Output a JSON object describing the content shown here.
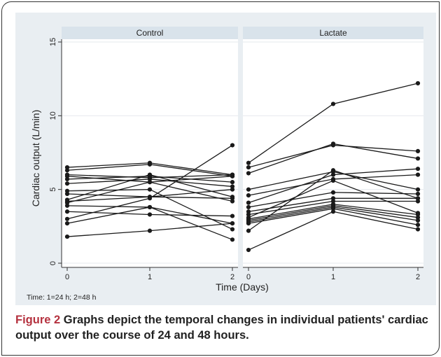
{
  "chart_data": {
    "type": "line",
    "panels": [
      {
        "title": "Control",
        "x": [
          0,
          1,
          2
        ],
        "series": [
          {
            "values": [
              6.5,
              6.8,
              6.0
            ]
          },
          {
            "values": [
              6.3,
              6.7,
              5.9
            ]
          },
          {
            "values": [
              6.0,
              5.8,
              6.0
            ]
          },
          {
            "values": [
              5.9,
              5.5,
              5.9
            ]
          },
          {
            "values": [
              5.7,
              5.9,
              5.5
            ]
          },
          {
            "values": [
              5.4,
              5.7,
              5.2
            ]
          },
          {
            "values": [
              4.9,
              5.0,
              2.3
            ]
          },
          {
            "values": [
              4.7,
              4.5,
              5.0
            ]
          },
          {
            "values": [
              4.3,
              6.0,
              4.5
            ]
          },
          {
            "values": [
              4.2,
              4.5,
              4.4
            ]
          },
          {
            "values": [
              4.1,
              5.5,
              4.2
            ]
          },
          {
            "values": [
              3.9,
              3.8,
              1.6
            ]
          },
          {
            "values": [
              3.5,
              3.3,
              3.2
            ]
          },
          {
            "values": [
              3.0,
              4.4,
              8.0
            ]
          },
          {
            "values": [
              2.7,
              3.8,
              2.7
            ]
          },
          {
            "values": [
              1.8,
              2.2,
              2.7
            ]
          }
        ]
      },
      {
        "title": "Lactate",
        "x": [
          0,
          1,
          2
        ],
        "series": [
          {
            "values": [
              6.8,
              10.8,
              12.2
            ]
          },
          {
            "values": [
              6.5,
              8.0,
              7.6
            ]
          },
          {
            "values": [
              6.1,
              8.1,
              7.1
            ]
          },
          {
            "values": [
              5.0,
              6.2,
              5.0
            ]
          },
          {
            "values": [
              4.6,
              5.7,
              6.0
            ]
          },
          {
            "values": [
              4.1,
              6.0,
              6.4
            ]
          },
          {
            "values": [
              3.8,
              4.8,
              4.7
            ]
          },
          {
            "values": [
              3.5,
              4.4,
              4.4
            ]
          },
          {
            "values": [
              3.3,
              4.2,
              4.2
            ]
          },
          {
            "values": [
              3.1,
              5.6,
              3.4
            ]
          },
          {
            "values": [
              3.0,
              4.0,
              3.3
            ]
          },
          {
            "values": [
              2.9,
              3.9,
              3.1
            ]
          },
          {
            "values": [
              2.8,
              3.8,
              2.9
            ]
          },
          {
            "values": [
              2.7,
              3.7,
              2.6
            ]
          },
          {
            "values": [
              2.2,
              6.3,
              4.4
            ]
          },
          {
            "values": [
              0.9,
              3.5,
              2.3
            ]
          }
        ]
      }
    ],
    "xlabel": "Time (Days)",
    "ylabel": "Cardiac output (L/min)",
    "xticks": [
      "0",
      "1",
      "2"
    ],
    "yticks": [
      "0",
      "5",
      "10",
      "15"
    ],
    "ylim": [
      0,
      15
    ],
    "grid": true,
    "note": "Time: 1=24 h; 2=48 h"
  },
  "caption": {
    "lead": "Figure 2",
    "text": "Graphs depict the temporal changes in individual patients' cardiac output over the course of 24 and 48 hours."
  },
  "colors": {
    "plot_background": "#e9eef2",
    "panel_background": "#ffffff",
    "strip": "#d9e3eb",
    "line": "#1a1a1a",
    "caption_lead": "#b5323f"
  }
}
